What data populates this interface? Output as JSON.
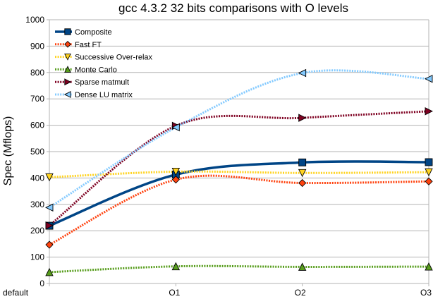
{
  "chart_data": {
    "type": "line",
    "title": "gcc 4.3.2 32 bits comparisons with O levels",
    "xlabel": "",
    "ylabel": "Spec (Mflops)",
    "categories": [
      "default",
      "O1",
      "O2",
      "O3"
    ],
    "ylim": [
      0,
      1000
    ],
    "yticks": [
      0,
      100,
      200,
      300,
      400,
      500,
      600,
      700,
      800,
      900,
      1000
    ],
    "grid": true,
    "legend_position": "top-left",
    "series": [
      {
        "name": "Composite",
        "values": [
          219,
          413,
          459,
          460
        ],
        "color": "#004586",
        "marker": "square",
        "style": "solid"
      },
      {
        "name": "Fast FT",
        "values": [
          147,
          394,
          381,
          387
        ],
        "color": "#ff420e",
        "marker": "diamond",
        "style": "dotted"
      },
      {
        "name": "Successive Over-relax",
        "values": [
          403,
          424,
          419,
          422
        ],
        "color": "#ffd320",
        "marker": "triangle-down",
        "style": "dotted"
      },
      {
        "name": "Monte Carlo",
        "values": [
          43,
          65,
          63,
          64
        ],
        "color": "#579d1c",
        "marker": "triangle-up",
        "style": "dotted"
      },
      {
        "name": "Sparse matmult",
        "values": [
          220,
          598,
          628,
          653
        ],
        "color": "#7e0021",
        "marker": "triangle-right",
        "style": "dotted"
      },
      {
        "name": "Dense LU matrix",
        "values": [
          288,
          592,
          798,
          776
        ],
        "color": "#83caff",
        "marker": "triangle-left",
        "style": "dotted"
      }
    ]
  }
}
